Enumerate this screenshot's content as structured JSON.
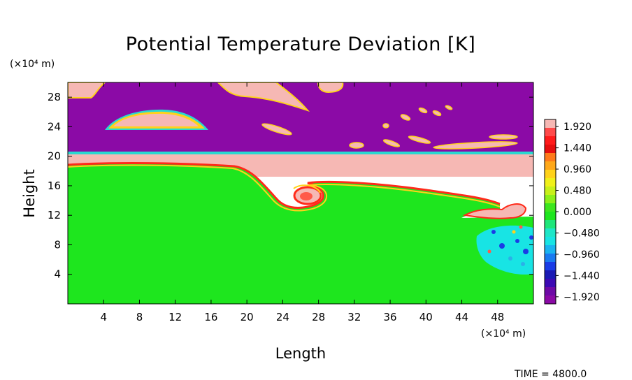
{
  "chart_data": {
    "type": "heatmap",
    "title": "Potential Temperature Deviation [K]",
    "xlabel": "Length",
    "ylabel": "Height",
    "x_unit": "(×10⁴ m)",
    "y_unit": "(×10⁴ m)",
    "xlim": [
      0,
      52
    ],
    "ylim": [
      0,
      30
    ],
    "x_ticks": [
      "4",
      "8",
      "12",
      "16",
      "20",
      "24",
      "28",
      "32",
      "36",
      "40",
      "44",
      "48"
    ],
    "y_ticks": [
      "4",
      "8",
      "12",
      "16",
      "20",
      "24",
      "28"
    ],
    "colorbar": {
      "range": [
        -2.08,
        2.08
      ],
      "ticks": [
        "1.920",
        "1.440",
        "0.960",
        "0.480",
        "0.000",
        "−0.480",
        "−0.960",
        "−1.440",
        "−1.920"
      ],
      "tick_values": [
        1.92,
        1.44,
        0.96,
        0.48,
        0.0,
        -0.48,
        -0.96,
        -1.44,
        -1.92
      ]
    },
    "colors": {
      "upper_layer": "#8b0aa6",
      "middle_layer": "#f6b8b4",
      "lower_layer": "#1ee61e",
      "cold_patch": "#18e4e4"
    },
    "layers": [
      {
        "label": "upper",
        "y_range": [
          20.2,
          30
        ],
        "value": -1.92
      },
      {
        "label": "middle",
        "y_range": [
          18.5,
          20.2
        ],
        "value": 1.92
      },
      {
        "label": "lower",
        "y_range": [
          0,
          18.5
        ],
        "value": 0.0
      }
    ],
    "features": [
      {
        "kind": "warm-lens",
        "x": [
          6,
          18
        ],
        "y": [
          23.5,
          27
        ]
      },
      {
        "kind": "vortex",
        "x": 26,
        "y": 14.8
      },
      {
        "kind": "cold-patch",
        "x": [
          44,
          52
        ],
        "y": [
          4,
          11
        ]
      }
    ]
  },
  "footer": {
    "time": "TIME = 4800.0"
  }
}
